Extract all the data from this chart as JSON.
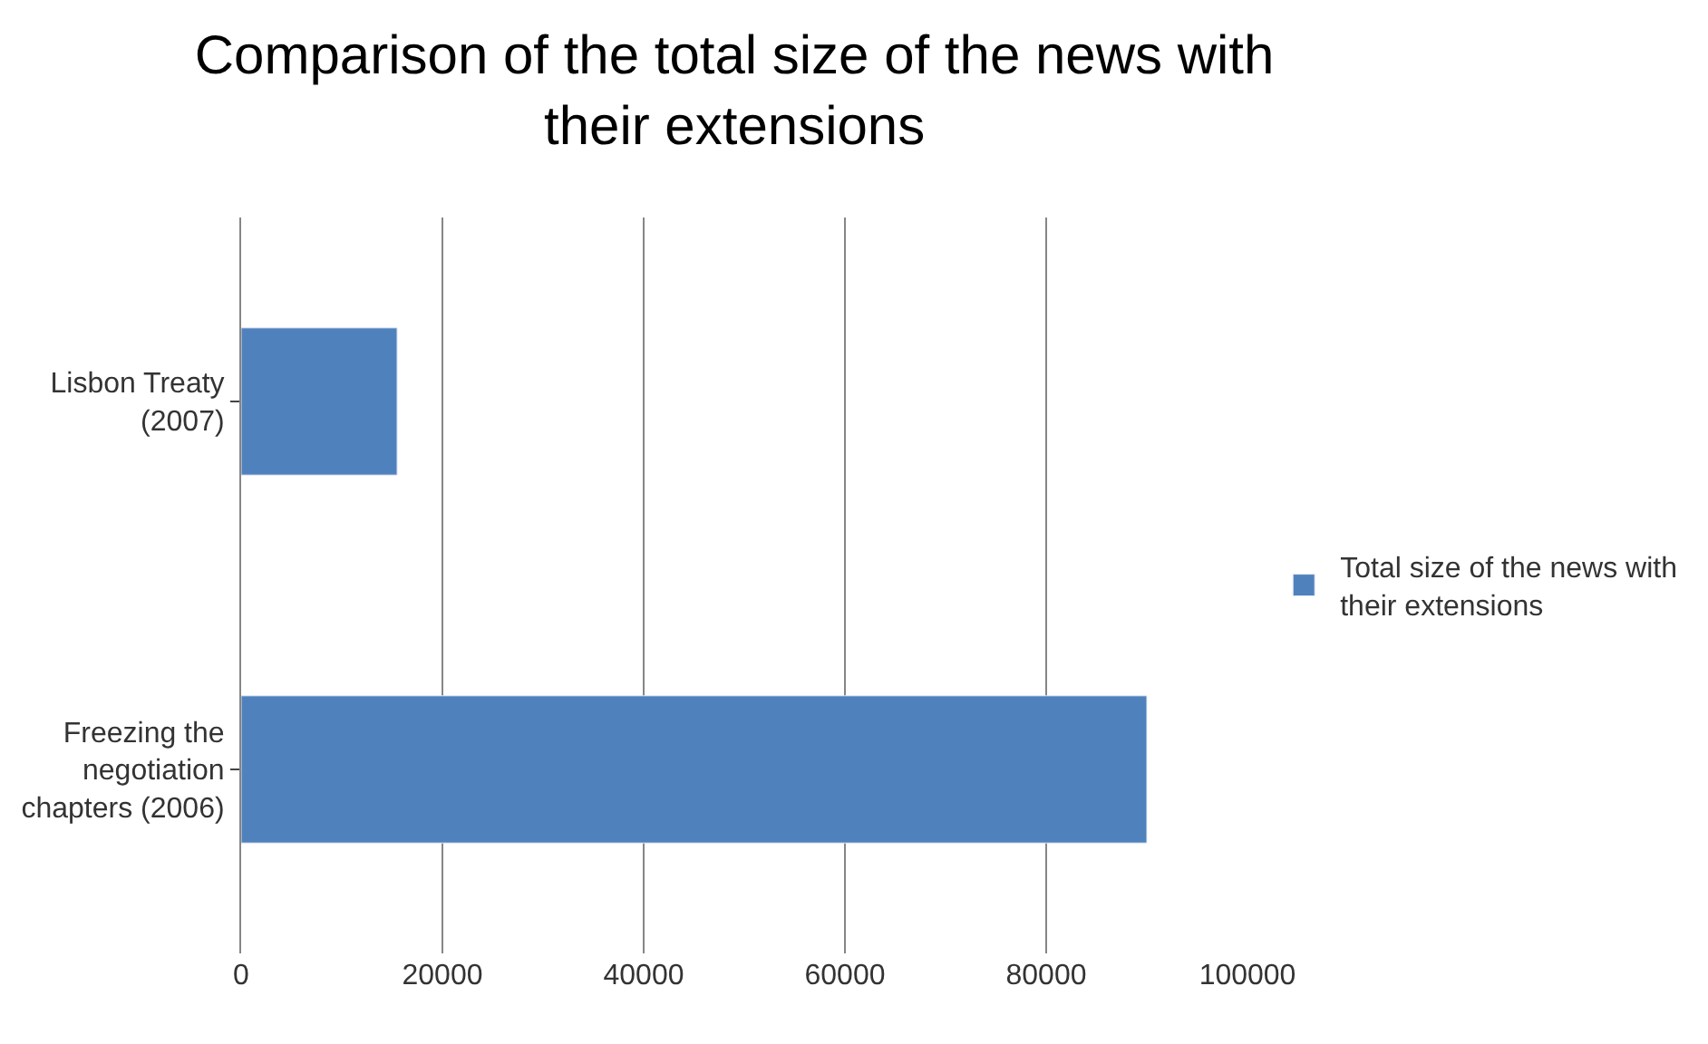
{
  "chart_data": {
    "type": "bar",
    "orientation": "horizontal",
    "title": "Comparison of the total size of the news with their extensions",
    "categories": [
      "Lisbon Treaty (2007)",
      "Freezing the negotiation chapters (2006)"
    ],
    "series": [
      {
        "name": "Total size of the news with their extensions",
        "color": "#4f81bd",
        "values": [
          15500,
          90000
        ]
      }
    ],
    "xlim": [
      0,
      100000
    ],
    "xticks": [
      0,
      20000,
      40000,
      60000,
      80000,
      100000
    ],
    "grid": "x",
    "legend": "right"
  }
}
